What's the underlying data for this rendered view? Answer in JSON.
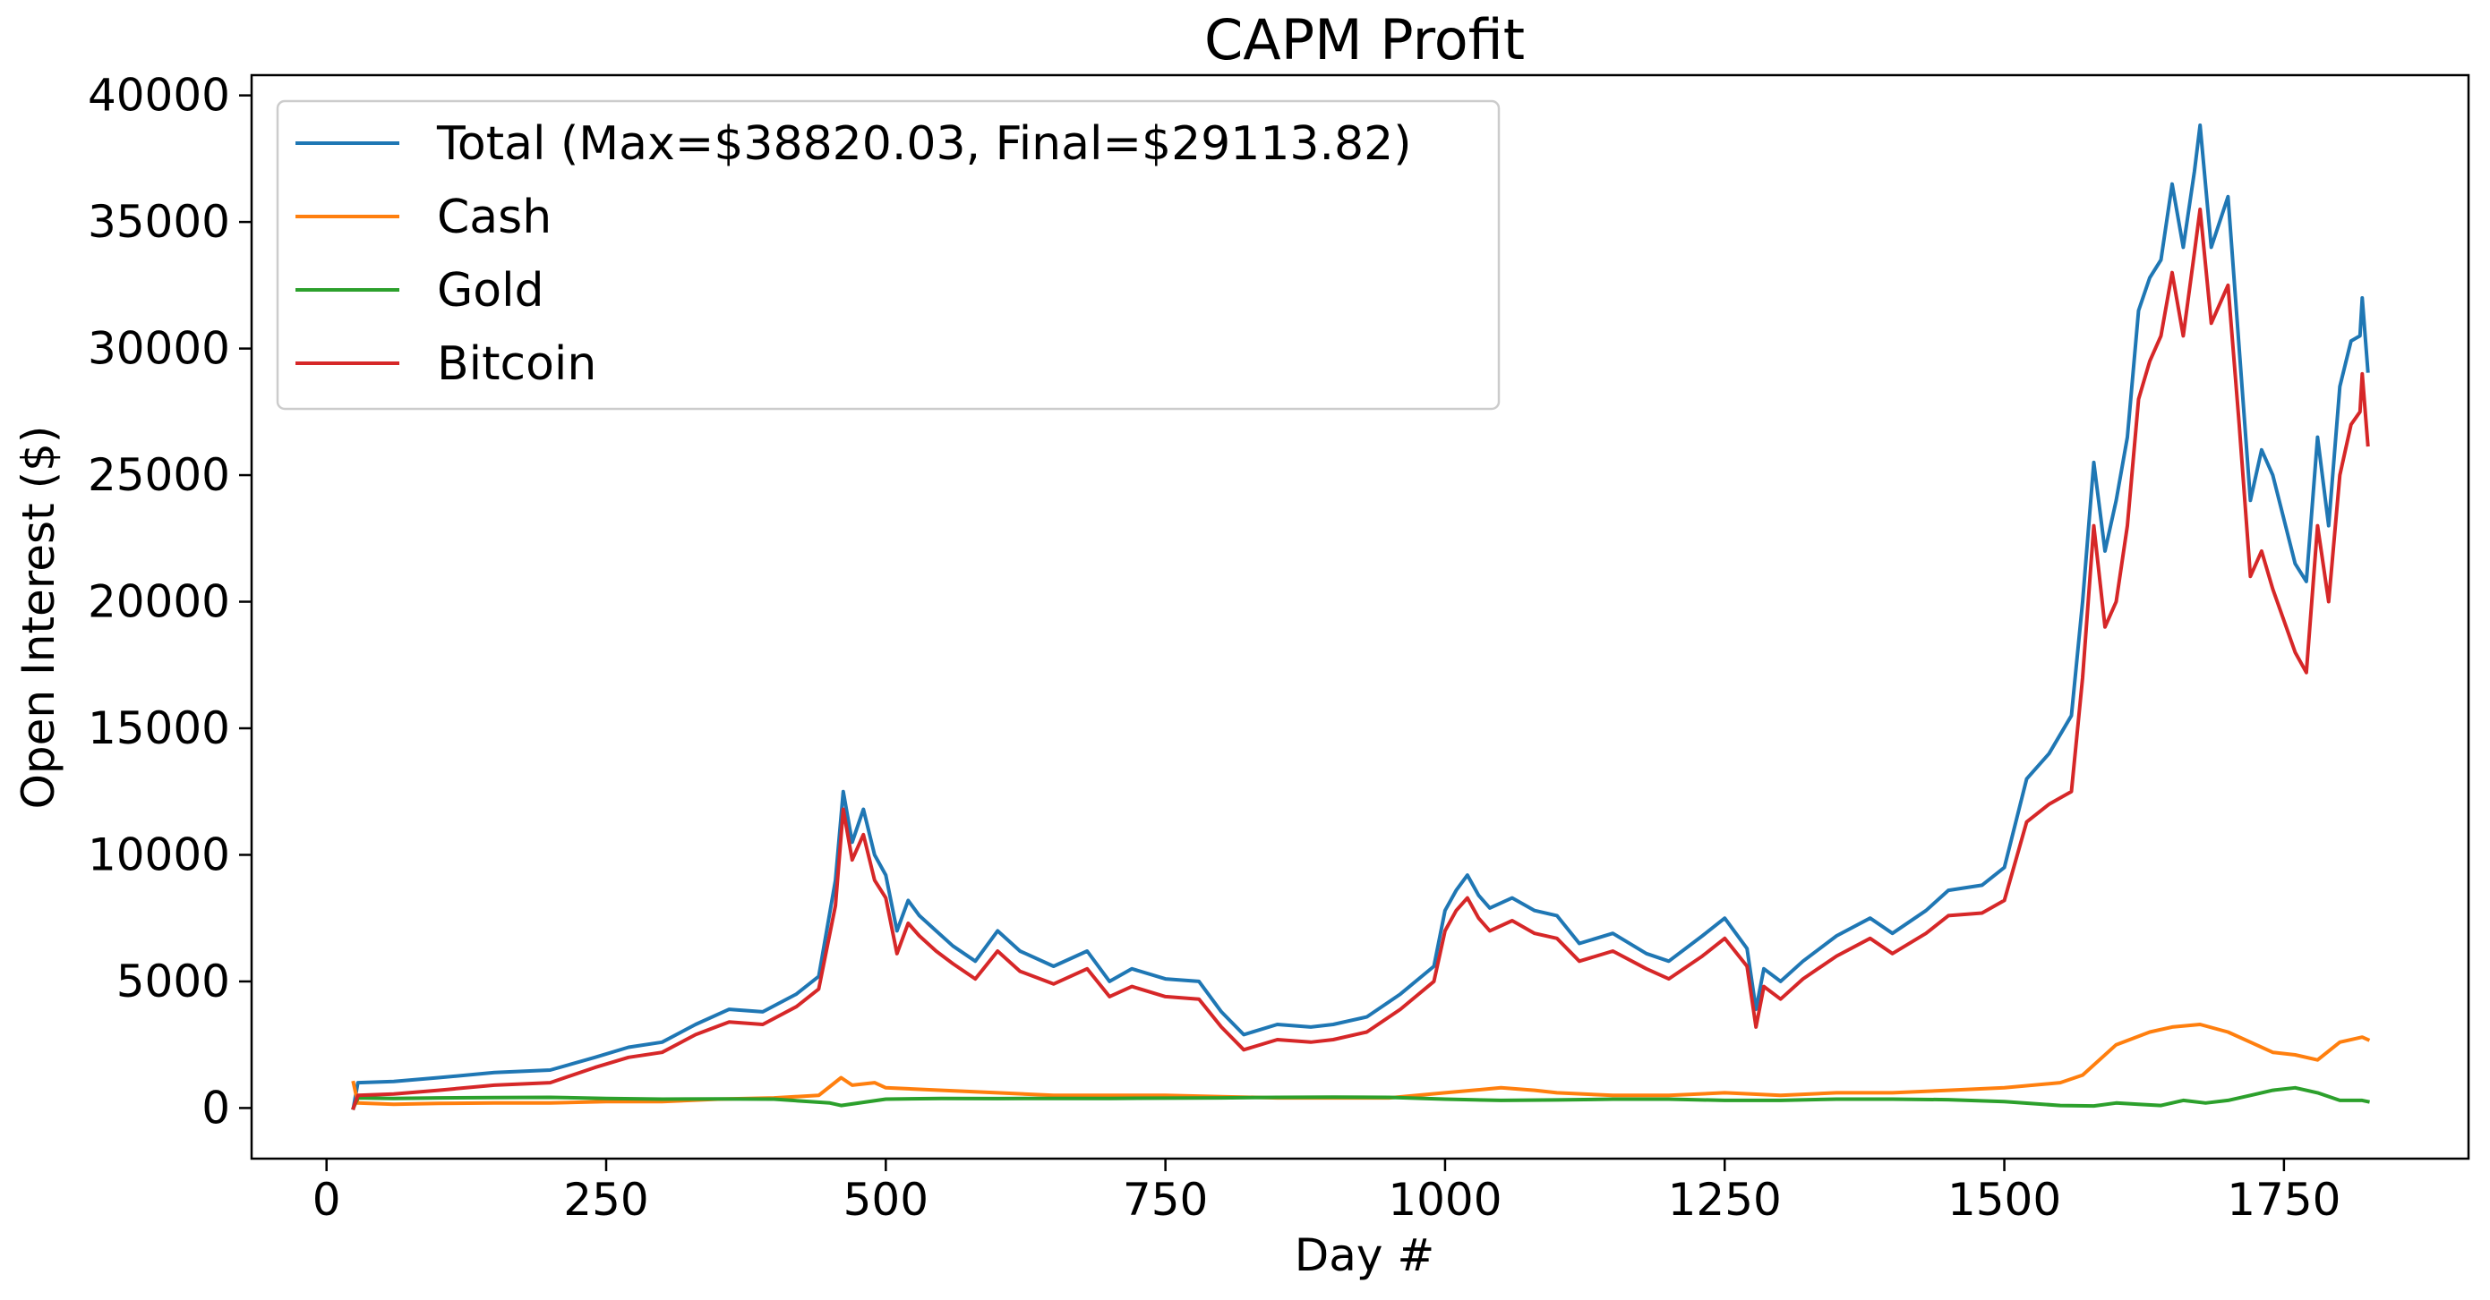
{
  "chart_data": {
    "type": "line",
    "title": "CAPM Profit",
    "xlabel": "Day #",
    "ylabel": "Open Interest ($)",
    "xlim": [
      -67,
      1915
    ],
    "ylim": [
      -2000,
      40800
    ],
    "xticks": [
      0,
      250,
      500,
      750,
      1000,
      1250,
      1500,
      1750
    ],
    "yticks": [
      0,
      5000,
      10000,
      15000,
      20000,
      25000,
      30000,
      35000,
      40000
    ],
    "grid": false,
    "legend_position": "upper-left",
    "series": [
      {
        "name": "Total (Max=$38820.03, Final=$29113.82)",
        "color": "#1f77b4",
        "x": [
          24,
          28,
          60,
          100,
          150,
          200,
          240,
          270,
          300,
          330,
          360,
          390,
          420,
          440,
          455,
          462,
          470,
          480,
          490,
          500,
          510,
          520,
          530,
          545,
          560,
          580,
          600,
          620,
          650,
          680,
          700,
          720,
          750,
          780,
          800,
          820,
          850,
          880,
          900,
          930,
          960,
          990,
          1000,
          1010,
          1020,
          1030,
          1040,
          1060,
          1080,
          1100,
          1120,
          1150,
          1180,
          1200,
          1230,
          1250,
          1270,
          1278,
          1285,
          1300,
          1320,
          1350,
          1380,
          1400,
          1430,
          1450,
          1480,
          1500,
          1520,
          1540,
          1560,
          1570,
          1580,
          1590,
          1600,
          1610,
          1620,
          1630,
          1640,
          1650,
          1660,
          1670,
          1675,
          1685,
          1700,
          1710,
          1720,
          1730,
          1740,
          1760,
          1770,
          1780,
          1790,
          1800,
          1810,
          1818,
          1820,
          1825
        ],
        "y": [
          0,
          1000,
          1050,
          1200,
          1400,
          1500,
          2000,
          2400,
          2600,
          3300,
          3900,
          3800,
          4500,
          5200,
          9000,
          12500,
          10500,
          11800,
          10000,
          9200,
          7000,
          8200,
          7600,
          7000,
          6400,
          5800,
          7000,
          6200,
          5600,
          6200,
          5000,
          5500,
          5100,
          5000,
          3800,
          2900,
          3300,
          3200,
          3300,
          3600,
          4500,
          5600,
          7800,
          8600,
          9200,
          8400,
          7900,
          8300,
          7800,
          7600,
          6500,
          6900,
          6100,
          5800,
          6800,
          7500,
          6300,
          3900,
          5500,
          5000,
          5800,
          6800,
          7500,
          6900,
          7800,
          8600,
          8800,
          9500,
          13000,
          14000,
          15500,
          20000,
          25500,
          22000,
          24000,
          26500,
          31500,
          32800,
          33500,
          36500,
          34000,
          37000,
          38820,
          34000,
          36000,
          30000,
          24000,
          26000,
          25000,
          21500,
          20800,
          26500,
          23000,
          28500,
          30300,
          30500,
          32000,
          29114
        ]
      },
      {
        "name": "Cash",
        "color": "#ff7f0e",
        "x": [
          24,
          28,
          60,
          100,
          150,
          200,
          250,
          300,
          350,
          400,
          440,
          460,
          470,
          490,
          500,
          550,
          600,
          650,
          700,
          750,
          800,
          850,
          900,
          950,
          1000,
          1050,
          1080,
          1100,
          1150,
          1200,
          1250,
          1300,
          1350,
          1400,
          1450,
          1500,
          1550,
          1570,
          1600,
          1630,
          1650,
          1675,
          1700,
          1720,
          1740,
          1760,
          1780,
          1800,
          1820,
          1825
        ],
        "y": [
          1000,
          200,
          150,
          180,
          200,
          200,
          250,
          250,
          350,
          400,
          500,
          1200,
          900,
          1000,
          800,
          700,
          600,
          500,
          500,
          500,
          450,
          400,
          400,
          400,
          600,
          800,
          700,
          600,
          500,
          500,
          600,
          500,
          600,
          600,
          700,
          800,
          1000,
          1300,
          2500,
          3000,
          3200,
          3300,
          3000,
          2600,
          2200,
          2100,
          1900,
          2600,
          2800,
          2700
        ]
      },
      {
        "name": "Gold",
        "color": "#2ca02c",
        "x": [
          24,
          28,
          60,
          100,
          150,
          200,
          250,
          300,
          350,
          400,
          450,
          460,
          500,
          550,
          600,
          650,
          700,
          750,
          800,
          850,
          900,
          950,
          1000,
          1050,
          1100,
          1150,
          1200,
          1250,
          1300,
          1350,
          1400,
          1450,
          1500,
          1550,
          1580,
          1600,
          1620,
          1640,
          1660,
          1680,
          1700,
          1720,
          1740,
          1760,
          1780,
          1800,
          1820,
          1825
        ],
        "y": [
          0,
          400,
          380,
          400,
          410,
          420,
          380,
          350,
          360,
          350,
          200,
          100,
          350,
          380,
          370,
          380,
          380,
          390,
          400,
          420,
          430,
          420,
          350,
          300,
          320,
          350,
          350,
          300,
          300,
          350,
          350,
          330,
          250,
          100,
          80,
          200,
          150,
          100,
          300,
          200,
          300,
          500,
          700,
          800,
          600,
          300,
          300,
          250
        ]
      },
      {
        "name": "Bitcoin",
        "color": "#d62728",
        "x": [
          24,
          28,
          60,
          100,
          150,
          200,
          240,
          270,
          300,
          330,
          360,
          390,
          420,
          440,
          455,
          462,
          470,
          480,
          490,
          500,
          510,
          520,
          530,
          545,
          560,
          580,
          600,
          620,
          650,
          680,
          700,
          720,
          750,
          780,
          800,
          820,
          850,
          880,
          900,
          930,
          960,
          990,
          1000,
          1010,
          1020,
          1030,
          1040,
          1060,
          1080,
          1100,
          1120,
          1150,
          1180,
          1200,
          1230,
          1250,
          1270,
          1278,
          1285,
          1300,
          1320,
          1350,
          1380,
          1400,
          1430,
          1450,
          1480,
          1500,
          1520,
          1540,
          1560,
          1570,
          1580,
          1590,
          1600,
          1610,
          1620,
          1630,
          1640,
          1650,
          1660,
          1670,
          1675,
          1685,
          1700,
          1710,
          1720,
          1730,
          1740,
          1760,
          1770,
          1780,
          1790,
          1800,
          1810,
          1818,
          1820,
          1825
        ],
        "y": [
          0,
          500,
          550,
          700,
          900,
          1000,
          1600,
          2000,
          2200,
          2900,
          3400,
          3300,
          4000,
          4700,
          8000,
          11800,
          9800,
          10800,
          9000,
          8300,
          6100,
          7300,
          6800,
          6200,
          5700,
          5100,
          6200,
          5400,
          4900,
          5500,
          4400,
          4800,
          4400,
          4300,
          3200,
          2300,
          2700,
          2600,
          2700,
          3000,
          3900,
          5000,
          7000,
          7800,
          8300,
          7500,
          7000,
          7400,
          6900,
          6700,
          5800,
          6200,
          5500,
          5100,
          6000,
          6700,
          5600,
          3200,
          4800,
          4300,
          5100,
          6000,
          6700,
          6100,
          6900,
          7600,
          7700,
          8200,
          11300,
          12000,
          12500,
          17000,
          23000,
          19000,
          20000,
          23000,
          28000,
          29500,
          30500,
          33000,
          30500,
          33800,
          35500,
          31000,
          32500,
          27000,
          21000,
          22000,
          20500,
          18000,
          17200,
          23000,
          20000,
          25000,
          27000,
          27500,
          29000,
          26200
        ]
      }
    ]
  }
}
